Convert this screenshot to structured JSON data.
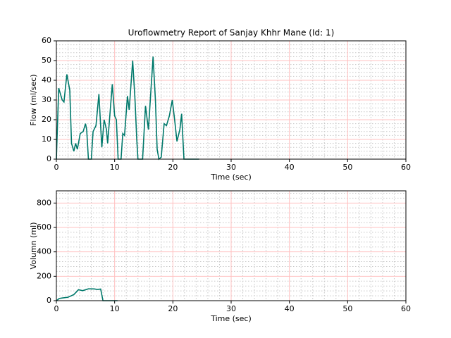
{
  "chart_data": [
    {
      "type": "line",
      "title": "Uroflowmetry Report of  Sanjay Khhr Mane (Id: 1)",
      "xlabel": "Time (sec)",
      "ylabel": "Flow (ml/sec)",
      "x": [
        0,
        0.4,
        1,
        1.3,
        1.8,
        2.3,
        2.6,
        3,
        3.3,
        3.6,
        4.1,
        4.6,
        5,
        5.2,
        5.5,
        6,
        6.3,
        6.8,
        7.3,
        7.8,
        8.2,
        8.6,
        8.8,
        9.6,
        10,
        10.3,
        10.6,
        11.1,
        11.4,
        11.7,
        12.2,
        12.5,
        13.1,
        13.5,
        13.8,
        14,
        14.8,
        15.3,
        15.8,
        16.6,
        17,
        17.3,
        17.6,
        18,
        18.5,
        18.9,
        19.4,
        19.9,
        20.3,
        20.7,
        21.2,
        21.5,
        21.9,
        24.5
      ],
      "values": [
        0,
        36,
        30,
        29,
        43,
        35,
        8,
        4,
        8,
        5,
        13,
        14,
        18,
        15,
        0,
        0,
        14,
        17,
        33,
        6,
        20,
        15,
        8,
        38,
        22,
        20,
        0,
        0,
        13,
        12,
        32,
        25,
        50,
        30,
        10,
        0,
        0,
        27,
        15,
        52,
        30,
        5,
        0,
        1,
        18,
        17,
        22,
        30,
        20,
        9,
        15,
        23,
        0,
        0
      ],
      "color": "#00796b",
      "xlim": [
        0,
        60
      ],
      "ylim": [
        0,
        60
      ],
      "xticks": [
        0,
        10,
        20,
        30,
        40,
        50,
        60
      ],
      "yticks": [
        0,
        10,
        20,
        30,
        40,
        50,
        60
      ],
      "xminor": [
        2,
        4,
        6,
        8,
        12,
        14,
        16,
        18,
        22,
        24,
        26,
        28,
        32,
        34,
        36,
        38,
        42,
        44,
        46,
        48,
        52,
        54,
        56,
        58
      ],
      "yminor": [
        2,
        4,
        6,
        8,
        12,
        14,
        16,
        18,
        22,
        24,
        26,
        28,
        32,
        34,
        36,
        38,
        42,
        44,
        46,
        48,
        52,
        54,
        56,
        58
      ],
      "grid": true
    },
    {
      "type": "line",
      "xlabel": "Time (sec)",
      "ylabel": "Volumn (ml)",
      "x": [
        0,
        0.5,
        1,
        2,
        3,
        3.8,
        4.5,
        5.5,
        6.5,
        7,
        7.6,
        8,
        10.5
      ],
      "values": [
        0,
        18,
        22,
        28,
        50,
        90,
        82,
        97,
        96,
        92,
        95,
        0,
        0
      ],
      "color": "#00796b",
      "xlim": [
        0,
        60
      ],
      "ylim": [
        0,
        900
      ],
      "xticks": [
        0,
        10,
        20,
        30,
        40,
        50,
        60
      ],
      "yticks": [
        0,
        200,
        400,
        600,
        800
      ],
      "xminor": [
        2,
        4,
        6,
        8,
        12,
        14,
        16,
        18,
        22,
        24,
        26,
        28,
        32,
        34,
        36,
        38,
        42,
        44,
        46,
        48,
        52,
        54,
        56,
        58
      ],
      "yminor": [
        40,
        80,
        120,
        160,
        240,
        280,
        320,
        360,
        440,
        480,
        520,
        560,
        640,
        680,
        720,
        760,
        840,
        880
      ],
      "grid": true
    }
  ]
}
